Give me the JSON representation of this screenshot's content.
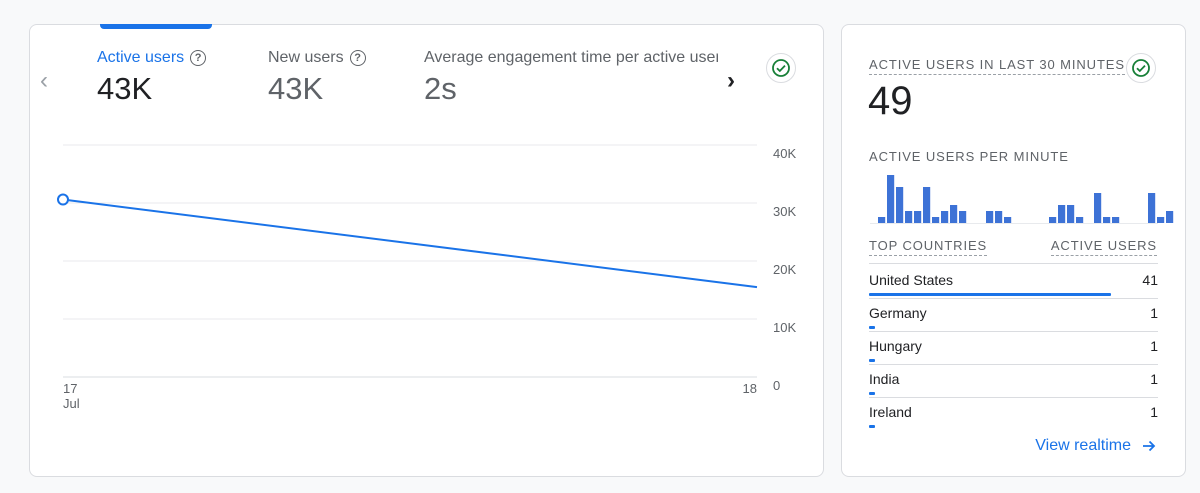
{
  "metrics": {
    "active_users": {
      "label": "Active users",
      "value": "43K"
    },
    "new_users": {
      "label": "New users",
      "value": "43K"
    },
    "engagement": {
      "label": "Average engagement time per active user",
      "value": "2s"
    }
  },
  "chart_data": {
    "type": "line",
    "x": [
      "17 Jul",
      "18"
    ],
    "x_tick_lines": [
      [
        "17",
        "Jul"
      ],
      [
        "18"
      ]
    ],
    "series": [
      {
        "values": [
          30600,
          15500
        ]
      }
    ],
    "y_ticks": [
      "40K",
      "30K",
      "20K",
      "10K",
      "0"
    ],
    "y_tick_values": [
      40000,
      30000,
      20000,
      10000,
      0
    ],
    "ylim": [
      0,
      40000
    ],
    "grid": true,
    "color": "#1a73e8"
  },
  "realtime": {
    "title": "ACTIVE USERS IN LAST 30 MINUTES",
    "value": "49",
    "per_minute_label": "ACTIVE USERS PER MINUTE",
    "per_minute": [
      1,
      8,
      6,
      2,
      2,
      6,
      1,
      2,
      3,
      2,
      0,
      0,
      2,
      2,
      1,
      0,
      0,
      0,
      0,
      1,
      3,
      3,
      1,
      0,
      5,
      1,
      1,
      0,
      0,
      0,
      5,
      1,
      2
    ],
    "bar_color": "#3d72d6",
    "col_country": "TOP COUNTRIES",
    "col_users": "ACTIVE USERS",
    "countries": [
      {
        "name": "United States",
        "value": "41",
        "share": 1.0
      },
      {
        "name": "Germany",
        "value": "1",
        "share": 0.025
      },
      {
        "name": "Hungary",
        "value": "1",
        "share": 0.025
      },
      {
        "name": "India",
        "value": "1",
        "share": 0.025
      },
      {
        "name": "Ireland",
        "value": "1",
        "share": 0.025
      }
    ],
    "view_link": "View realtime"
  }
}
